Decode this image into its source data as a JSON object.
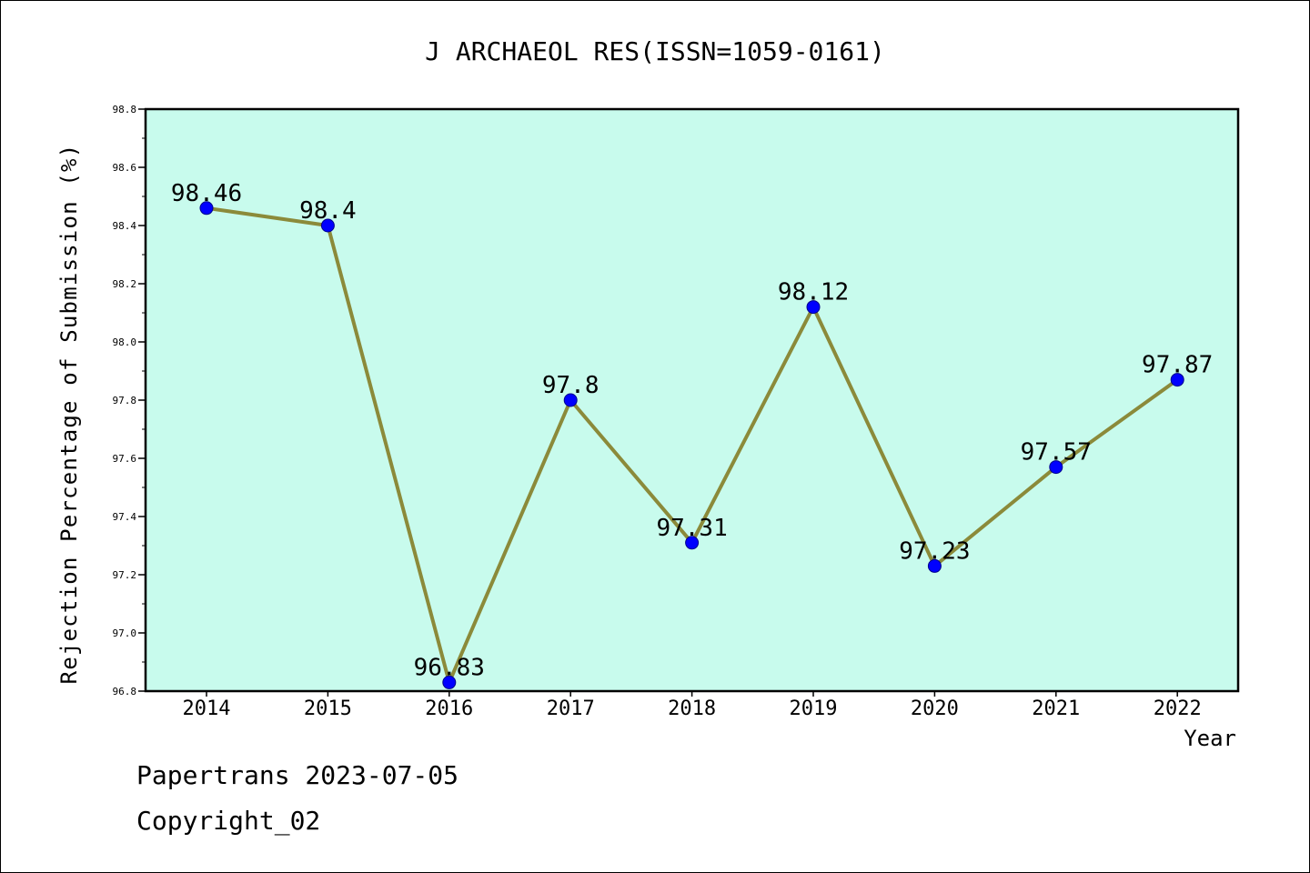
{
  "chart_data": {
    "type": "line",
    "title": "J ARCHAEOL RES(ISSN=1059-0161)",
    "xlabel": "Year",
    "ylabel": "Rejection Percentage of Submission (%)",
    "categories": [
      "2014",
      "2015",
      "2016",
      "2017",
      "2018",
      "2019",
      "2020",
      "2021",
      "2022"
    ],
    "series": [
      {
        "values": [
          98.46,
          98.4,
          96.83,
          97.8,
          97.31,
          98.12,
          97.23,
          97.57,
          97.87
        ],
        "data_labels": [
          "98.46",
          "98.4",
          "96.83",
          "97.8",
          "97.31",
          "98.12",
          "97.23",
          "97.57",
          "97.87"
        ]
      }
    ],
    "ylim": [
      96.8,
      98.8
    ],
    "yticks": [
      "96.8",
      "97.0",
      "97.2",
      "97.4",
      "97.6",
      "97.8",
      "98.0",
      "98.2",
      "98.4",
      "98.6",
      "98.8"
    ],
    "grid": false,
    "colors": {
      "plot_background": "#c8fbed",
      "line": "#8b8a3a",
      "marker": "#0000ff"
    }
  },
  "footer": {
    "line1": "Papertrans 2023-07-05",
    "line2": "Copyright_02"
  }
}
